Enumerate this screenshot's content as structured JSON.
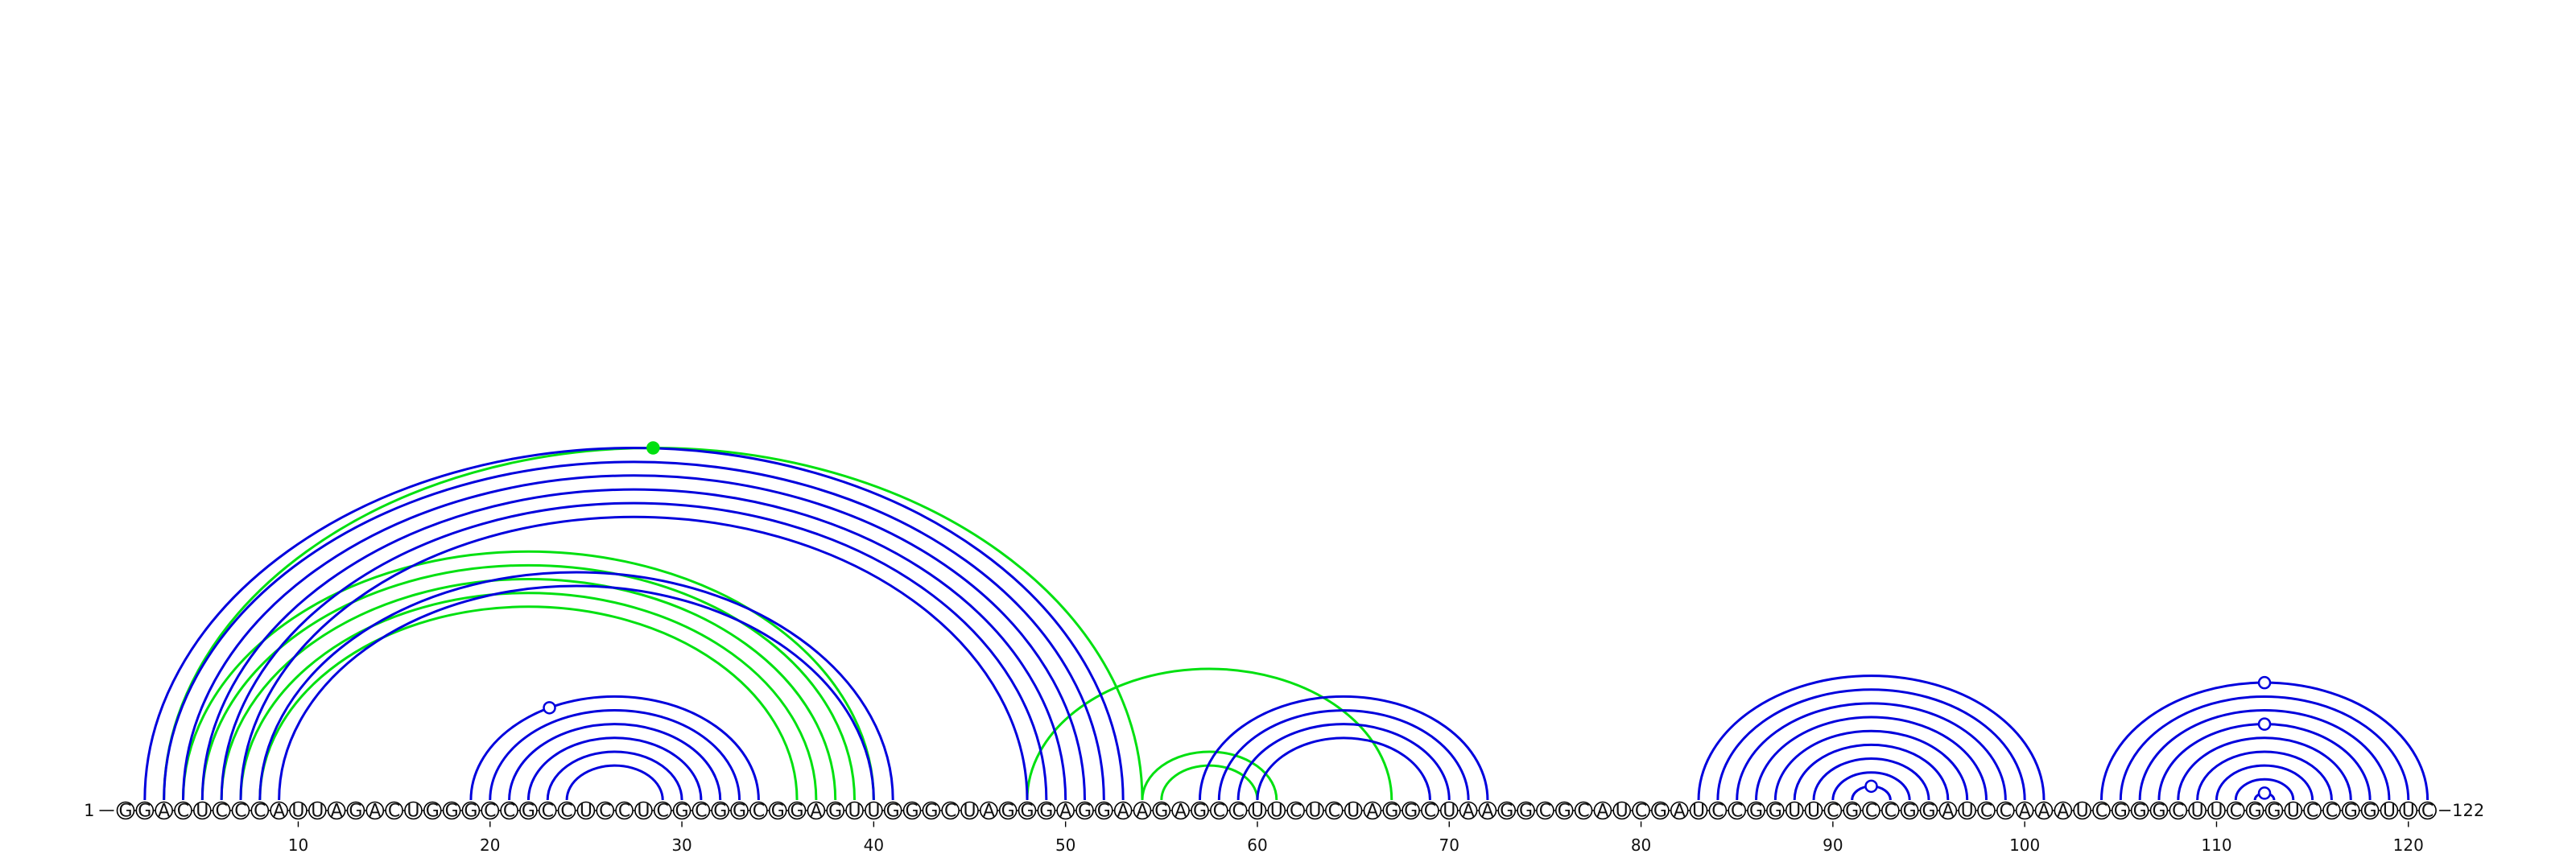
{
  "diagram": {
    "type": "rna-arc-diagram",
    "sequence": "GGACUCCCAUUAGACUGGGCCGCCUCCUCGCGGCGGAGUUGGGCUAGGGAGGAAGAGCCUUCUCUAGGCUAAGGCGCAUCGAUCCGGUUCGCCGGAUCCAAAUCGGGCUUCGGUCCGGUUC",
    "start_label": "1",
    "end_label": "122",
    "tick_positions": [
      10,
      20,
      30,
      40,
      50,
      60,
      70,
      80,
      90,
      100,
      110,
      120
    ],
    "colors": {
      "stem": "#0000dd",
      "pseudoknot": "#00e010",
      "backbone": "#000000"
    },
    "stem_pairs": [
      [
        2,
        53
      ],
      [
        3,
        52
      ],
      [
        4,
        51
      ],
      [
        5,
        50
      ],
      [
        6,
        49
      ],
      [
        7,
        48
      ],
      [
        8,
        41
      ],
      [
        9,
        40
      ],
      [
        19,
        34
      ],
      [
        20,
        33
      ],
      [
        21,
        32
      ],
      [
        22,
        31
      ],
      [
        23,
        30
      ],
      [
        24,
        29
      ],
      [
        57,
        72
      ],
      [
        58,
        71
      ],
      [
        59,
        70
      ],
      [
        60,
        69
      ],
      [
        83,
        101
      ],
      [
        84,
        100
      ],
      [
        85,
        99
      ],
      [
        86,
        98
      ],
      [
        87,
        97
      ],
      [
        88,
        96
      ],
      [
        89,
        95
      ],
      [
        90,
        94
      ],
      [
        91,
        93
      ],
      [
        104,
        121
      ],
      [
        105,
        120
      ],
      [
        106,
        119
      ],
      [
        107,
        118
      ],
      [
        108,
        117
      ],
      [
        109,
        116
      ],
      [
        110,
        115
      ],
      [
        111,
        114
      ],
      [
        112,
        113
      ]
    ],
    "pseudoknot_pairs": [
      [
        3,
        54
      ],
      [
        4,
        40
      ],
      [
        5,
        39
      ],
      [
        6,
        38
      ],
      [
        7,
        37
      ],
      [
        8,
        36
      ],
      [
        48,
        67
      ],
      [
        54,
        61
      ],
      [
        55,
        60
      ]
    ],
    "markers": [
      {
        "pair_index": 0,
        "group": "pseudoknot",
        "filled": true
      },
      {
        "pair_index": 8,
        "group": "stem",
        "filled": false,
        "t": 0.35
      },
      {
        "pair_index": 26,
        "group": "stem",
        "filled": false
      },
      {
        "pair_index": 27,
        "group": "stem",
        "filled": false
      },
      {
        "pair_index": 30,
        "group": "stem",
        "filled": false
      },
      {
        "pair_index": 35,
        "group": "stem",
        "filled": false
      }
    ]
  }
}
